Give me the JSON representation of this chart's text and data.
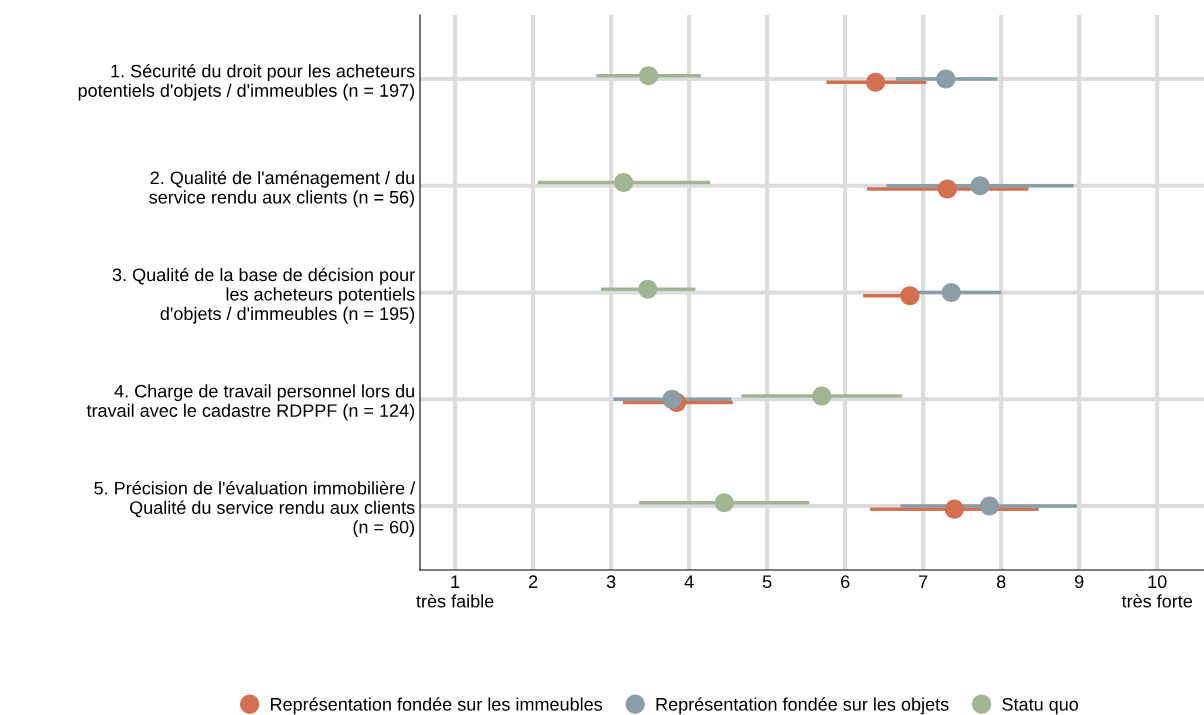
{
  "chart_data": {
    "type": "scatter",
    "orientation": "horizontal",
    "categories": [
      "1. Sécurité du droit pour les acheteurs\npotentiels d'objets / d'immeubles (n = 197)",
      "2. Qualité de l'aménagement / du\nservice rendu aux clients (n = 56)",
      "3. Qualité de la base de décision pour\nles acheteurs potentiels\nd'objets / d'immeubles (n = 195)",
      "4. Charge de travail personnel lors du\ntravail avec le cadastre RDPPF (n = 124)",
      "5. Précision de l'évaluation immobilière /\nQualité du service rendu aux clients\n(n = 60)"
    ],
    "series": [
      {
        "name": "Représentation fondée sur les immeubles",
        "color": "#d4704f",
        "values": [
          6.39,
          7.31,
          6.83,
          3.84,
          7.4
        ],
        "errors": [
          [
            5.76,
            7.04
          ],
          [
            6.28,
            8.35
          ],
          [
            6.23,
            6.83
          ],
          [
            3.15,
            4.56
          ],
          [
            6.32,
            8.48
          ]
        ]
      },
      {
        "name": "Représentation fondée sur les objets",
        "color": "#8a9ea8",
        "values": [
          7.29,
          7.73,
          7.36,
          3.78,
          7.85
        ],
        "errors": [
          [
            6.65,
            7.95
          ],
          [
            6.53,
            8.93
          ],
          [
            6.75,
            8.0
          ],
          [
            3.03,
            4.54
          ],
          [
            6.71,
            8.97
          ]
        ]
      },
      {
        "name": "Statu quo",
        "color": "#a0b592",
        "values": [
          3.48,
          3.16,
          3.47,
          5.7,
          4.45
        ],
        "errors": [
          [
            2.81,
            4.15
          ],
          [
            2.06,
            4.27
          ],
          [
            2.87,
            4.08
          ],
          [
            4.67,
            6.73
          ],
          [
            3.36,
            5.54
          ]
        ]
      }
    ],
    "xlim": [
      0.55,
      10.6
    ],
    "xticks": [
      {
        "value": 1,
        "label": "1\ntrès faible"
      },
      2,
      3,
      4,
      5,
      6,
      7,
      8,
      9,
      {
        "value": 10,
        "label": "10\ntrès forte"
      }
    ],
    "grid": true,
    "legend": "bottom",
    "marker": "circle"
  }
}
